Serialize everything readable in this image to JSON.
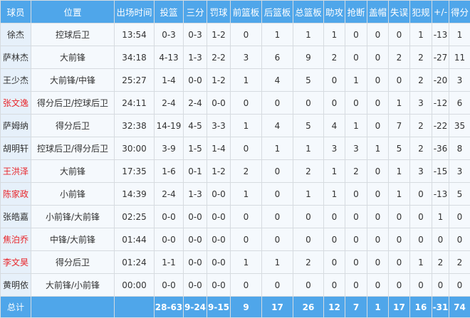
{
  "colors": {
    "header_bg": "#4fa6ea",
    "highlight_name": "#e8262b"
  },
  "headers": [
    "球员",
    "位置",
    "出场时间",
    "投篮",
    "三分",
    "罚球",
    "前篮板",
    "后篮板",
    "总篮板",
    "助攻",
    "抢断",
    "盖帽",
    "失误",
    "犯规",
    "+/-",
    "得分"
  ],
  "players": [
    {
      "name": "徐杰",
      "highlight": false,
      "stats": [
        "控球后卫",
        "13:54",
        "0-3",
        "0-3",
        "1-2",
        "0",
        "1",
        "1",
        "1",
        "0",
        "0",
        "0",
        "1",
        "-13",
        "1"
      ]
    },
    {
      "name": "萨林杰",
      "highlight": false,
      "stats": [
        "大前锋",
        "34:18",
        "4-13",
        "1-3",
        "2-2",
        "3",
        "6",
        "9",
        "2",
        "0",
        "0",
        "2",
        "2",
        "-27",
        "11"
      ]
    },
    {
      "name": "王少杰",
      "highlight": false,
      "stats": [
        "大前锋/中锋",
        "25:27",
        "1-4",
        "0-0",
        "1-2",
        "1",
        "4",
        "5",
        "0",
        "1",
        "0",
        "0",
        "2",
        "-20",
        "3"
      ]
    },
    {
      "name": "张文逸",
      "highlight": true,
      "stats": [
        "得分后卫/控球后卫",
        "24:11",
        "2-4",
        "2-4",
        "0-0",
        "0",
        "0",
        "0",
        "0",
        "0",
        "0",
        "1",
        "3",
        "-12",
        "6"
      ]
    },
    {
      "name": "萨姆纳",
      "highlight": false,
      "stats": [
        "得分后卫",
        "32:38",
        "14-19",
        "4-5",
        "3-3",
        "1",
        "4",
        "5",
        "4",
        "1",
        "0",
        "7",
        "2",
        "-22",
        "35"
      ]
    },
    {
      "name": "胡明轩",
      "highlight": false,
      "stats": [
        "控球后卫/得分后卫",
        "30:00",
        "3-9",
        "1-5",
        "1-4",
        "0",
        "1",
        "1",
        "3",
        "3",
        "1",
        "5",
        "2",
        "-36",
        "8"
      ]
    },
    {
      "name": "王洪泽",
      "highlight": true,
      "stats": [
        "大前锋",
        "17:35",
        "1-6",
        "0-1",
        "1-2",
        "2",
        "0",
        "2",
        "1",
        "2",
        "0",
        "1",
        "3",
        "-15",
        "3"
      ]
    },
    {
      "name": "陈家政",
      "highlight": true,
      "stats": [
        "小前锋",
        "14:39",
        "2-4",
        "1-3",
        "0-0",
        "1",
        "0",
        "1",
        "1",
        "0",
        "0",
        "1",
        "0",
        "-13",
        "5"
      ]
    },
    {
      "name": "张皓嘉",
      "highlight": false,
      "stats": [
        "小前锋/大前锋",
        "02:25",
        "0-0",
        "0-0",
        "0-0",
        "0",
        "0",
        "0",
        "0",
        "0",
        "0",
        "0",
        "0",
        "1",
        "0"
      ]
    },
    {
      "name": "焦泊乔",
      "highlight": true,
      "stats": [
        "中锋/大前锋",
        "01:44",
        "0-0",
        "0-0",
        "0-0",
        "0",
        "0",
        "0",
        "0",
        "0",
        "0",
        "0",
        "0",
        "0",
        "0"
      ]
    },
    {
      "name": "李文昊",
      "highlight": true,
      "stats": [
        "得分后卫",
        "01:24",
        "1-1",
        "0-0",
        "0-0",
        "1",
        "1",
        "2",
        "0",
        "0",
        "0",
        "0",
        "1",
        "2",
        "2"
      ]
    },
    {
      "name": "黄明依",
      "highlight": false,
      "stats": [
        "大前锋/小前锋",
        "00:00",
        "0-0",
        "0-0",
        "0-0",
        "0",
        "0",
        "0",
        "0",
        "0",
        "0",
        "0",
        "0",
        "0",
        "0"
      ]
    }
  ],
  "total": {
    "label": "总计",
    "stats": [
      "",
      "",
      "28-63",
      "9-24",
      "9-15",
      "9",
      "17",
      "26",
      "12",
      "7",
      "1",
      "17",
      "16",
      "-31",
      "74"
    ]
  }
}
